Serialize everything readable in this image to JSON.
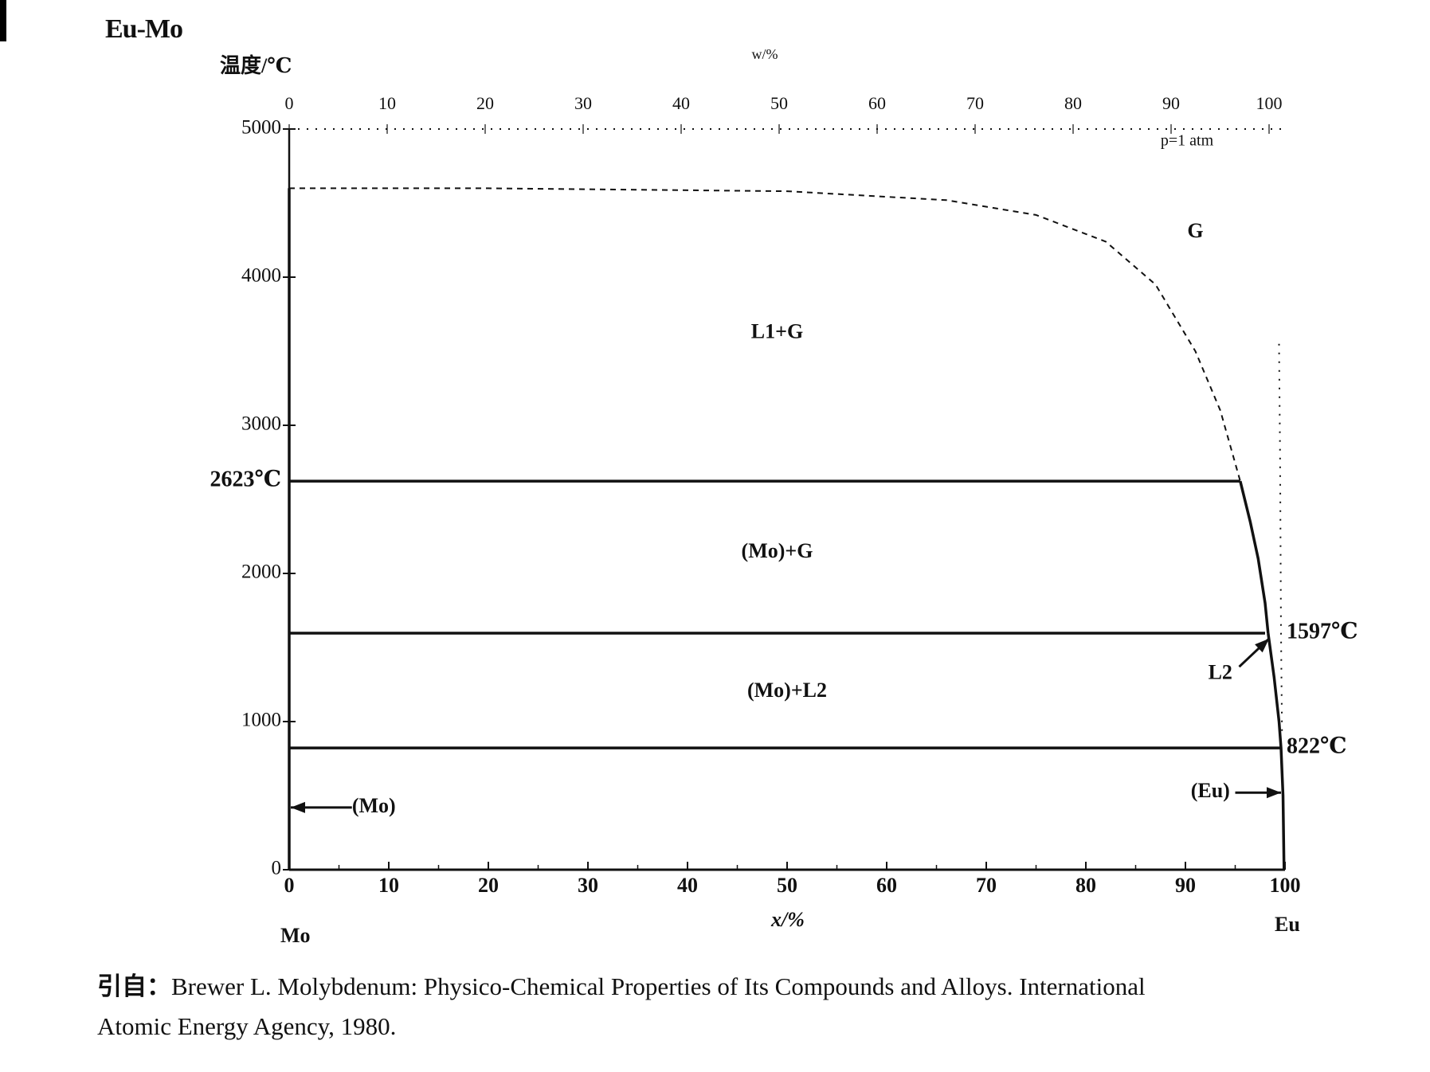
{
  "title": "Eu-Mo",
  "ylabel": "温度/℃",
  "reference": {
    "prefix": "引自：",
    "line1": "Brewer L.  Molybdenum: Physico-Chemical Properties of Its Compounds and Alloys. International",
    "line2": "Atomic Energy Agency, 1980."
  },
  "chart_data": {
    "type": "line",
    "title": "Eu-Mo",
    "xlabel": "x/%",
    "ylabel": "温度/℃",
    "top_axis_label": "w/%",
    "xlim": [
      0,
      100
    ],
    "ylim": [
      0,
      5000
    ],
    "x_ticks": [
      0,
      10,
      20,
      30,
      40,
      50,
      60,
      70,
      80,
      90,
      100
    ],
    "top_ticks": [
      0,
      10,
      20,
      30,
      40,
      50,
      60,
      70,
      80,
      90,
      100
    ],
    "y_ticks": [
      0,
      1000,
      2000,
      3000,
      4000,
      5000
    ],
    "component_left": "Mo",
    "component_right": "Eu",
    "pressure_note": "p=1 atm",
    "series": [
      {
        "style": "solid",
        "points": [
          [
            0,
            2623
          ],
          [
            95.5,
            2623
          ]
        ]
      },
      {
        "style": "solid",
        "points": [
          [
            0,
            1597
          ],
          [
            98,
            1597
          ]
        ]
      },
      {
        "style": "solid",
        "points": [
          [
            0,
            822
          ],
          [
            99.5,
            822
          ]
        ]
      },
      {
        "style": "solid",
        "points": [
          [
            95.5,
            2623
          ],
          [
            96.5,
            2350
          ],
          [
            97.3,
            2100
          ],
          [
            98,
            1800
          ],
          [
            98.3,
            1597
          ]
        ]
      },
      {
        "style": "solid",
        "points": [
          [
            98.3,
            1597
          ],
          [
            98.9,
            1300
          ],
          [
            99.4,
            1000
          ],
          [
            99.6,
            822
          ],
          [
            99.8,
            500
          ],
          [
            99.9,
            0
          ]
        ]
      },
      {
        "style": "solid",
        "points": [
          [
            0,
            0
          ],
          [
            0,
            4600
          ]
        ]
      },
      {
        "style": "dashed",
        "points": [
          [
            0,
            4600
          ],
          [
            20,
            4600
          ],
          [
            50,
            4580
          ],
          [
            66,
            4520
          ],
          [
            75,
            4420
          ],
          [
            82,
            4240
          ],
          [
            87,
            3950
          ],
          [
            91,
            3500
          ],
          [
            93.5,
            3100
          ],
          [
            95.5,
            2623
          ]
        ]
      },
      {
        "style": "dotted",
        "points": [
          [
            0,
            5000
          ],
          [
            30,
            5000
          ],
          [
            60,
            5000
          ],
          [
            100,
            5000
          ]
        ]
      },
      {
        "style": "dotted",
        "points": [
          [
            99.4,
            3550
          ],
          [
            99.5,
            2800
          ],
          [
            99.6,
            1597
          ],
          [
            99.7,
            900
          ]
        ]
      }
    ],
    "annotations": [
      {
        "text": "L1+G",
        "x": 49,
        "y": 3620
      },
      {
        "text": "G",
        "x": 91,
        "y": 4300
      },
      {
        "text": "(Mo)+G",
        "x": 49,
        "y": 2140
      },
      {
        "text": "(Mo)+L2",
        "x": 50,
        "y": 1200
      },
      {
        "text": "(Mo)",
        "x": 8.5,
        "y": 420
      },
      {
        "text": "(Eu)",
        "x": 92.5,
        "y": 520
      },
      {
        "text": "L2",
        "x": 93.5,
        "y": 1320
      },
      {
        "text": "2623℃",
        "x": -6,
        "y": 2623
      },
      {
        "text": "1597℃",
        "x": 104,
        "y": 1597
      },
      {
        "text": "822℃",
        "x": 103.5,
        "y": 822
      }
    ]
  }
}
